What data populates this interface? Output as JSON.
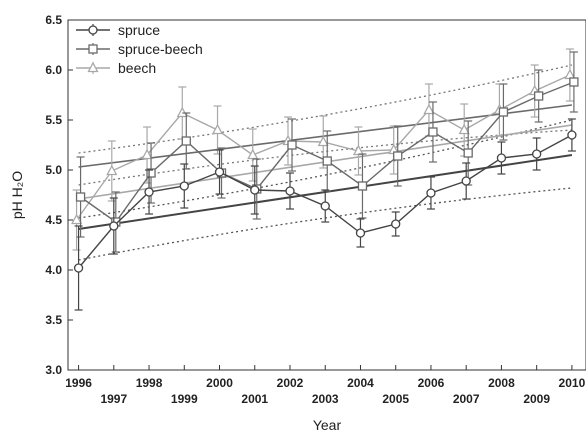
{
  "chart_data": {
    "type": "line",
    "xlabel": "Year",
    "ylabel": "pH H₂O",
    "ylim": [
      3.0,
      6.5
    ],
    "xlim": [
      1995.7,
      2010.4
    ],
    "yticks": [
      "3.0",
      "3.5",
      "4.0",
      "4.5",
      "5.0",
      "5.5",
      "6.0",
      "6.5"
    ],
    "xticks_upper": [
      "1996",
      "1998",
      "2000",
      "2002",
      "2004",
      "2006",
      "2008",
      "2010"
    ],
    "xticks_lower": [
      "1997",
      "1999",
      "2001",
      "2003",
      "2005",
      "2007",
      "2009"
    ],
    "legend_position": "top-left",
    "grid": false,
    "x": [
      1996,
      1997,
      1998,
      1999,
      2000,
      2001,
      2002,
      2003,
      2004,
      2005,
      2006,
      2007,
      2008,
      2009,
      2010
    ],
    "series": [
      {
        "name": "spruce",
        "color": "#444444",
        "marker": "circle",
        "values": [
          4.02,
          4.44,
          4.78,
          4.84,
          4.98,
          4.8,
          4.79,
          4.64,
          4.37,
          4.46,
          4.77,
          4.89,
          5.12,
          5.16,
          5.35
        ],
        "err": [
          0.42,
          0.28,
          0.22,
          0.22,
          0.22,
          0.24,
          0.18,
          0.16,
          0.14,
          0.12,
          0.16,
          0.18,
          0.16,
          0.16,
          0.16
        ],
        "trend": [
          4.41,
          5.15
        ]
      },
      {
        "name": "spruce-beech",
        "color": "#6a6a6a",
        "marker": "square",
        "values": [
          4.73,
          4.48,
          4.97,
          5.29,
          4.97,
          4.81,
          5.25,
          5.09,
          4.84,
          5.14,
          5.38,
          5.17,
          5.58,
          5.74,
          5.88
        ],
        "err": [
          0.4,
          0.3,
          0.3,
          0.28,
          0.25,
          0.3,
          0.26,
          0.3,
          0.32,
          0.3,
          0.3,
          0.32,
          0.28,
          0.26,
          0.3
        ],
        "trend": [
          5.03,
          5.65
        ]
      },
      {
        "name": "beech",
        "color": "#a8a8a8",
        "marker": "triangle",
        "values": [
          4.5,
          4.99,
          5.15,
          5.57,
          5.4,
          5.15,
          5.29,
          5.28,
          5.19,
          5.2,
          5.6,
          5.4,
          5.6,
          5.79,
          5.95
        ],
        "err": [
          0.3,
          0.3,
          0.28,
          0.26,
          0.24,
          0.26,
          0.24,
          0.26,
          0.24,
          0.24,
          0.26,
          0.26,
          0.26,
          0.26,
          0.26
        ],
        "trend": [
          4.71,
          5.45
        ]
      }
    ],
    "confidence_bands": [
      {
        "lower": [
          4.1,
          4.82
        ],
        "upper": [
          4.52,
          5.5
        ],
        "color": "#555555"
      },
      {
        "lower": [
          4.85,
          5.4
        ],
        "upper": [
          5.17,
          6.05
        ],
        "color": "#777777"
      }
    ]
  }
}
